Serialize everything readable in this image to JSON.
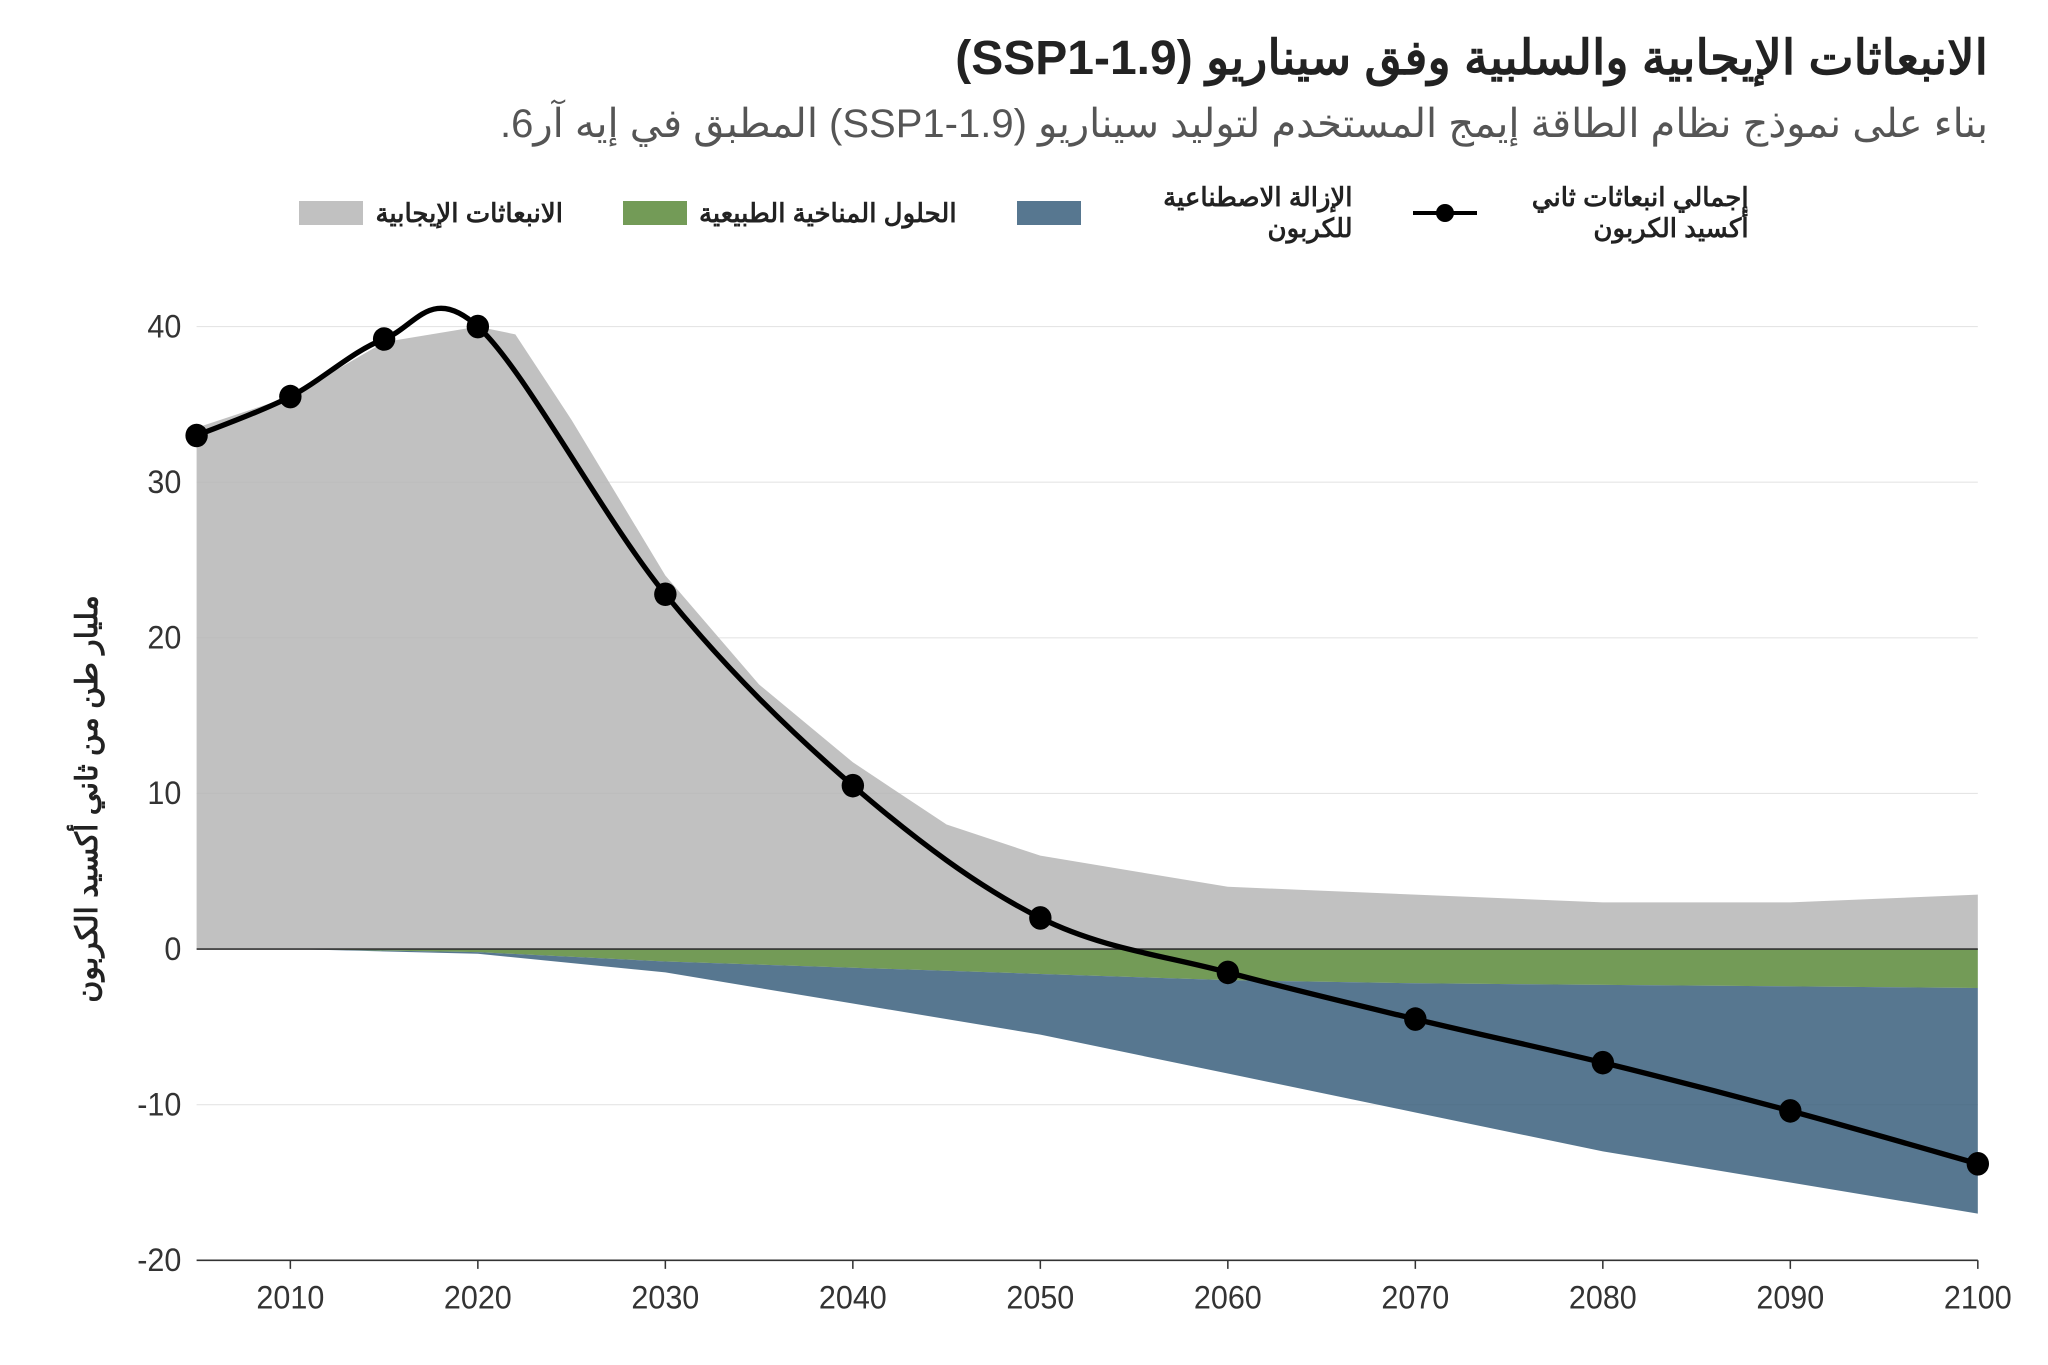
{
  "title": "الانبعاثات الإيجابية والسلبية وفق سيناريو (SSP1-1.9)",
  "subtitle": "بناء على نموذج نظام الطاقة إيمج المستخدم لتوليد سيناريو (SSP1-1.9) المطبق في إيه آر6.",
  "y_axis_label": "مليار طن من ثاني أكسيد الكربون",
  "title_fontsize": 48,
  "subtitle_fontsize": 40,
  "subtitle_color": "#555555",
  "legend_fontsize": 26,
  "axis_tick_fontsize": 30,
  "y_label_fontsize": 30,
  "title_color": "#222222",
  "chart": {
    "type": "stacked-area-with-line",
    "x_domain": [
      2005,
      2100
    ],
    "y_domain": [
      -20,
      42
    ],
    "x_ticks": [
      2010,
      2020,
      2030,
      2040,
      2050,
      2060,
      2070,
      2080,
      2090,
      2100
    ],
    "y_ticks": [
      -20,
      -10,
      0,
      10,
      20,
      30,
      40
    ],
    "grid_color": "#e5e5e5",
    "axis_color": "#333333",
    "tick_text_color": "#333333",
    "background_color": "#ffffff",
    "zero_line_color": "#333333",
    "zero_line_width": 1.5,
    "grid_line_width": 1,
    "series": {
      "positive_emissions": {
        "label": "الانبعاثات الإيجابية",
        "color": "#b6b6b6",
        "opacity": 0.85,
        "data": [
          {
            "x": 2005,
            "y": 33.5
          },
          {
            "x": 2010,
            "y": 35.5
          },
          {
            "x": 2015,
            "y": 39.0
          },
          {
            "x": 2020,
            "y": 40.0
          },
          {
            "x": 2022,
            "y": 39.5
          },
          {
            "x": 2025,
            "y": 34.0
          },
          {
            "x": 2030,
            "y": 24.0
          },
          {
            "x": 2035,
            "y": 17.0
          },
          {
            "x": 2040,
            "y": 12.0
          },
          {
            "x": 2045,
            "y": 8.0
          },
          {
            "x": 2050,
            "y": 6.0
          },
          {
            "x": 2055,
            "y": 5.0
          },
          {
            "x": 2060,
            "y": 4.0
          },
          {
            "x": 2070,
            "y": 3.5
          },
          {
            "x": 2080,
            "y": 3.0
          },
          {
            "x": 2090,
            "y": 3.0
          },
          {
            "x": 2100,
            "y": 3.5
          }
        ]
      },
      "nature_based": {
        "label": "الحلول المناخية الطبيعية",
        "color": "#5a8a3a",
        "opacity": 0.85,
        "data": [
          {
            "x": 2005,
            "y": 0
          },
          {
            "x": 2010,
            "y": 0
          },
          {
            "x": 2020,
            "y": -0.2
          },
          {
            "x": 2030,
            "y": -0.8
          },
          {
            "x": 2040,
            "y": -1.2
          },
          {
            "x": 2050,
            "y": -1.6
          },
          {
            "x": 2060,
            "y": -2.0
          },
          {
            "x": 2070,
            "y": -2.2
          },
          {
            "x": 2080,
            "y": -2.3
          },
          {
            "x": 2090,
            "y": -2.4
          },
          {
            "x": 2100,
            "y": -2.5
          }
        ]
      },
      "artificial_removal": {
        "label": "الإزالة الاصطناعية للكربون",
        "color": "#3a5f7d",
        "opacity": 0.85,
        "data": [
          {
            "x": 2005,
            "y0": 0,
            "y1": 0
          },
          {
            "x": 2010,
            "y0": 0,
            "y1": 0
          },
          {
            "x": 2020,
            "y0": -0.2,
            "y1": -0.3
          },
          {
            "x": 2030,
            "y0": -0.8,
            "y1": -1.5
          },
          {
            "x": 2040,
            "y0": -1.2,
            "y1": -3.5
          },
          {
            "x": 2050,
            "y0": -1.6,
            "y1": -5.5
          },
          {
            "x": 2060,
            "y0": -2.0,
            "y1": -8.0
          },
          {
            "x": 2070,
            "y0": -2.2,
            "y1": -10.5
          },
          {
            "x": 2080,
            "y0": -2.3,
            "y1": -13.0
          },
          {
            "x": 2090,
            "y0": -2.4,
            "y1": -15.0
          },
          {
            "x": 2100,
            "y0": -2.5,
            "y1": -17.0
          }
        ]
      },
      "total_line": {
        "label": "إجمالي انبعاثات ثاني أكسيد الكربون",
        "color": "#000000",
        "line_width": 5,
        "marker_radius": 11,
        "data": [
          {
            "x": 2005,
            "y": 33.0
          },
          {
            "x": 2010,
            "y": 35.5
          },
          {
            "x": 2015,
            "y": 39.2
          },
          {
            "x": 2020,
            "y": 40.0
          },
          {
            "x": 2030,
            "y": 22.8
          },
          {
            "x": 2040,
            "y": 10.5
          },
          {
            "x": 2050,
            "y": 2.0
          },
          {
            "x": 2060,
            "y": -1.5
          },
          {
            "x": 2070,
            "y": -4.5
          },
          {
            "x": 2080,
            "y": -7.3
          },
          {
            "x": 2090,
            "y": -10.4
          },
          {
            "x": 2100,
            "y": -13.8
          }
        ]
      }
    },
    "legend_order": [
      "total_line",
      "artificial_removal",
      "nature_based",
      "positive_emissions"
    ]
  }
}
